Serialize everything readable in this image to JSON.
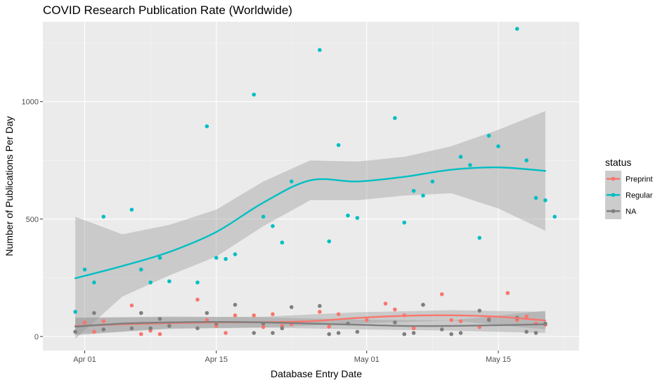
{
  "chart_data": {
    "type": "scatter",
    "title": "COVID Research Publication Rate (Worldwide)",
    "xlabel": "Database Entry Date",
    "ylabel": "Number of Publications Per Day",
    "x_ticks": [
      {
        "label": "Apr 01",
        "day": 0
      },
      {
        "label": "Apr 15",
        "day": 14
      },
      {
        "label": "May 01",
        "day": 30
      },
      {
        "label": "May 15",
        "day": 44
      }
    ],
    "y_ticks": [
      0,
      500,
      1000
    ],
    "xlim": [
      "2020-03-27",
      "2020-05-23"
    ],
    "ylim": [
      -60,
      1340
    ],
    "grid": true,
    "legend": {
      "title": "status",
      "position": "right"
    },
    "series": [
      {
        "name": "Preprint",
        "color": "#F8766D",
        "points": [
          [
            -1,
            20
          ],
          [
            0,
            60
          ],
          [
            1,
            20
          ],
          [
            2,
            65
          ],
          [
            5,
            132
          ],
          [
            6,
            10
          ],
          [
            7,
            35
          ],
          [
            7,
            25
          ],
          [
            8,
            10
          ],
          [
            9,
            45
          ],
          [
            12,
            157
          ],
          [
            13,
            70
          ],
          [
            14,
            45
          ],
          [
            15,
            15
          ],
          [
            16,
            90
          ],
          [
            18,
            90
          ],
          [
            19,
            40
          ],
          [
            20,
            95
          ],
          [
            21,
            45
          ],
          [
            22,
            52
          ],
          [
            25,
            105
          ],
          [
            26,
            42
          ],
          [
            27,
            95
          ],
          [
            30,
            70
          ],
          [
            32,
            140
          ],
          [
            33,
            115
          ],
          [
            34,
            90
          ],
          [
            35,
            35
          ],
          [
            36,
            135
          ],
          [
            38,
            180
          ],
          [
            39,
            70
          ],
          [
            40,
            65
          ],
          [
            42,
            40
          ],
          [
            43,
            75
          ],
          [
            45,
            185
          ],
          [
            46,
            70
          ],
          [
            47,
            85
          ],
          [
            48,
            55
          ],
          [
            49,
            50
          ]
        ],
        "smooth": [
          [
            -1,
            45
          ],
          [
            4,
            52
          ],
          [
            9,
            57
          ],
          [
            14,
            60
          ],
          [
            19,
            61
          ],
          [
            24,
            65
          ],
          [
            29,
            79
          ],
          [
            34,
            88
          ],
          [
            39,
            90
          ],
          [
            44,
            84
          ],
          [
            49,
            68
          ]
        ],
        "band": [
          [
            -1,
            10,
            80
          ],
          [
            9,
            32,
            82
          ],
          [
            19,
            38,
            84
          ],
          [
            29,
            55,
            103
          ],
          [
            39,
            68,
            112
          ],
          [
            49,
            30,
            105
          ]
        ]
      },
      {
        "name": "Regular",
        "color": "#00BFC4",
        "points": [
          [
            -1,
            105
          ],
          [
            0,
            285
          ],
          [
            1,
            230
          ],
          [
            2,
            510
          ],
          [
            5,
            540
          ],
          [
            6,
            285
          ],
          [
            7,
            230
          ],
          [
            8,
            335
          ],
          [
            9,
            235
          ],
          [
            12,
            230
          ],
          [
            13,
            895
          ],
          [
            14,
            335
          ],
          [
            15,
            330
          ],
          [
            16,
            350
          ],
          [
            18,
            1030
          ],
          [
            19,
            510
          ],
          [
            20,
            470
          ],
          [
            21,
            400
          ],
          [
            22,
            660
          ],
          [
            25,
            1220
          ],
          [
            26,
            405
          ],
          [
            27,
            815
          ],
          [
            28,
            515
          ],
          [
            29,
            505
          ],
          [
            33,
            930
          ],
          [
            34,
            485
          ],
          [
            35,
            620
          ],
          [
            36,
            600
          ],
          [
            37,
            660
          ],
          [
            40,
            765
          ],
          [
            41,
            730
          ],
          [
            42,
            420
          ],
          [
            43,
            855
          ],
          [
            44,
            810
          ],
          [
            46,
            1310
          ],
          [
            47,
            750
          ],
          [
            48,
            590
          ],
          [
            49,
            580
          ],
          [
            50,
            510
          ]
        ],
        "smooth": [
          [
            -1,
            248
          ],
          [
            4,
            300
          ],
          [
            9,
            360
          ],
          [
            14,
            445
          ],
          [
            19,
            570
          ],
          [
            24,
            665
          ],
          [
            29,
            660
          ],
          [
            34,
            680
          ],
          [
            39,
            710
          ],
          [
            44,
            720
          ],
          [
            49,
            705
          ]
        ],
        "band": [
          [
            -1,
            -10,
            510
          ],
          [
            4,
            170,
            435
          ],
          [
            9,
            260,
            475
          ],
          [
            14,
            340,
            540
          ],
          [
            19,
            470,
            660
          ],
          [
            24,
            580,
            750
          ],
          [
            29,
            580,
            745
          ],
          [
            34,
            600,
            765
          ],
          [
            39,
            610,
            810
          ],
          [
            44,
            545,
            880
          ],
          [
            49,
            450,
            960
          ]
        ]
      },
      {
        "name": "NA",
        "color": "#7F7F7F",
        "points": [
          [
            -1,
            20
          ],
          [
            1,
            100
          ],
          [
            2,
            30
          ],
          [
            5,
            35
          ],
          [
            6,
            100
          ],
          [
            7,
            35
          ],
          [
            8,
            75
          ],
          [
            9,
            45
          ],
          [
            12,
            35
          ],
          [
            13,
            100
          ],
          [
            14,
            55
          ],
          [
            16,
            135
          ],
          [
            18,
            15
          ],
          [
            19,
            55
          ],
          [
            20,
            15
          ],
          [
            21,
            35
          ],
          [
            22,
            125
          ],
          [
            25,
            130
          ],
          [
            26,
            10
          ],
          [
            27,
            15
          ],
          [
            28,
            55
          ],
          [
            29,
            20
          ],
          [
            33,
            60
          ],
          [
            34,
            10
          ],
          [
            35,
            15
          ],
          [
            36,
            135
          ],
          [
            38,
            30
          ],
          [
            39,
            10
          ],
          [
            40,
            15
          ],
          [
            42,
            110
          ],
          [
            43,
            70
          ],
          [
            46,
            80
          ],
          [
            47,
            20
          ],
          [
            48,
            15
          ],
          [
            49,
            55
          ]
        ],
        "smooth": [
          [
            -1,
            42
          ],
          [
            4,
            55
          ],
          [
            9,
            60
          ],
          [
            14,
            62
          ],
          [
            19,
            60
          ],
          [
            24,
            55
          ],
          [
            29,
            50
          ],
          [
            34,
            45
          ],
          [
            39,
            45
          ],
          [
            44,
            48
          ],
          [
            49,
            52
          ]
        ],
        "band": [
          [
            -1,
            5,
            80
          ],
          [
            9,
            35,
            85
          ],
          [
            19,
            38,
            82
          ],
          [
            29,
            30,
            72
          ],
          [
            39,
            25,
            68
          ],
          [
            49,
            15,
            110
          ]
        ]
      }
    ]
  }
}
